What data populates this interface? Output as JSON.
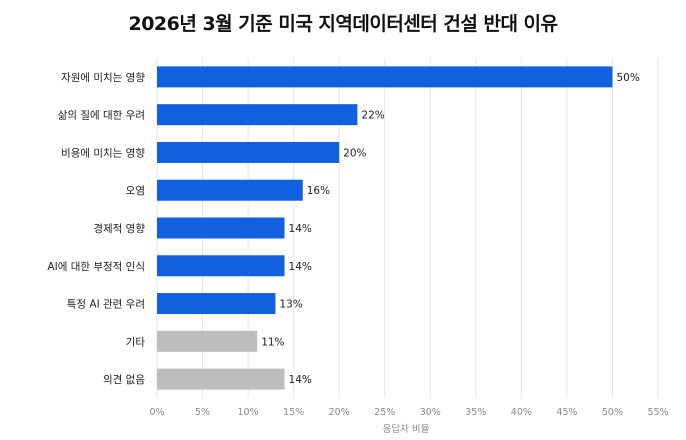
{
  "chart_data": {
    "type": "bar",
    "orientation": "horizontal",
    "title": "2026년 3월 기준 미국 지역데이터센터 건설 반대 이유",
    "xlabel": "응답자 비율",
    "ylabel": "",
    "categories": [
      "자원에 미치는 영향",
      "삶의 질에 대한 우려",
      "비용에 미치는 영향",
      "오염",
      "경제적 영향",
      "AI에 대한 부정적 인식",
      "특정 AI 관련 우려",
      "기타",
      "의견 없음"
    ],
    "values": [
      50,
      22,
      20,
      16,
      14,
      14,
      13,
      11,
      14
    ],
    "value_labels": [
      "50%",
      "22%",
      "20%",
      "16%",
      "14%",
      "14%",
      "13%",
      "11%",
      "14%"
    ],
    "bar_colors": [
      "#1060e0",
      "#1060e0",
      "#1060e0",
      "#1060e0",
      "#1060e0",
      "#1060e0",
      "#1060e0",
      "#bdbdbd",
      "#bdbdbd"
    ],
    "xlim": [
      0,
      55
    ],
    "x_ticks": [
      0,
      5,
      10,
      15,
      20,
      25,
      30,
      35,
      40,
      45,
      50,
      55
    ],
    "x_tick_labels": [
      "0%",
      "5%",
      "10%",
      "15%",
      "20%",
      "25%",
      "30%",
      "35%",
      "40%",
      "45%",
      "50%",
      "55%"
    ],
    "grid": true,
    "legend": "none"
  }
}
